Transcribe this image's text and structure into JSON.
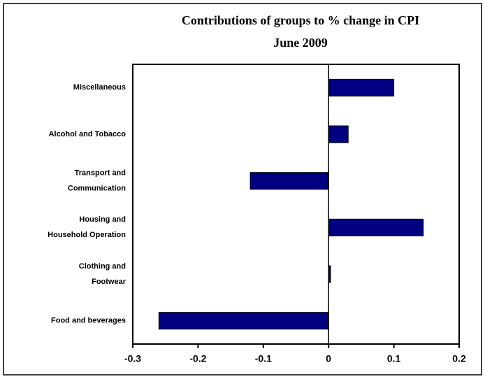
{
  "chart_data": {
    "type": "barh",
    "title": "Contributions of groups to % change in CPI",
    "subtitle": "June 2009",
    "categories": [
      [
        "Miscellaneous"
      ],
      [
        "Alcohol and Tobacco"
      ],
      [
        "Transport and",
        "Communication"
      ],
      [
        "Housing and",
        "Household Operation"
      ],
      [
        "Clothing and",
        "Footwear"
      ],
      [
        "Food and beverages"
      ]
    ],
    "values": [
      0.1,
      0.03,
      -0.12,
      0.145,
      0.003,
      -0.26
    ],
    "color": "#000080",
    "xlim": [
      -0.3,
      0.2
    ],
    "xticks": [
      -0.3,
      -0.2,
      -0.1,
      0,
      0.1,
      0.2
    ]
  }
}
